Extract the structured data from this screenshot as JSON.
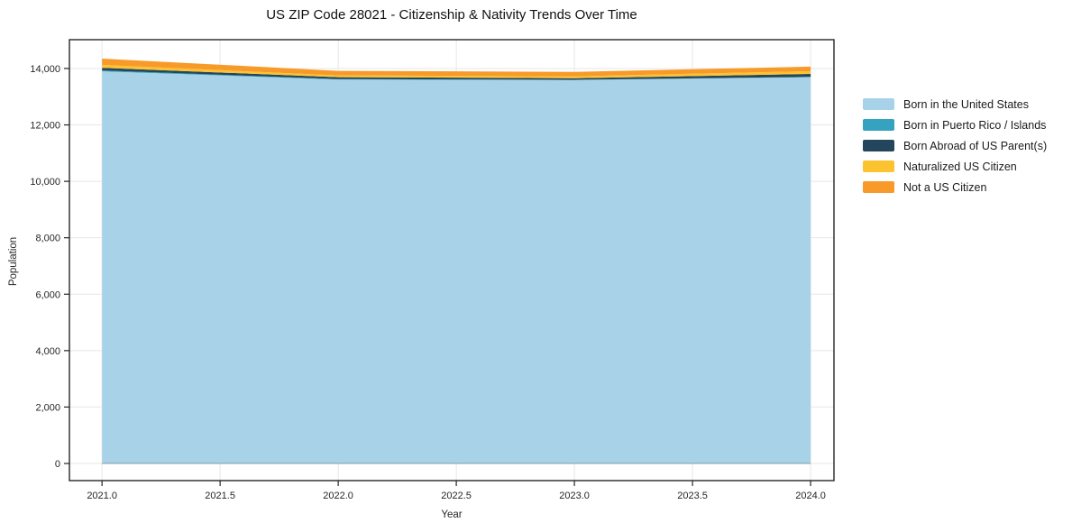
{
  "chart_data": {
    "type": "area",
    "stacked": true,
    "title": "US ZIP Code 28021 - Citizenship & Nativity Trends Over Time",
    "xlabel": "Year",
    "ylabel": "Population",
    "x": [
      2021,
      2022,
      2023,
      2024
    ],
    "series": [
      {
        "name": "Born in the United States",
        "color": "#a8d2e7",
        "values": [
          13900,
          13610,
          13590,
          13690
        ]
      },
      {
        "name": "Born in Puerto Rico / Islands",
        "color": "#35a3bf",
        "values": [
          30,
          15,
          10,
          10
        ]
      },
      {
        "name": "Born Abroad of US Parent(s)",
        "color": "#24465c",
        "values": [
          95,
          65,
          55,
          105
        ]
      },
      {
        "name": "Naturalized US Citizen",
        "color": "#fcc331",
        "values": [
          100,
          65,
          65,
          100
        ]
      },
      {
        "name": "Not a US Citizen",
        "color": "#f89a29",
        "values": [
          225,
          160,
          160,
          160
        ]
      }
    ],
    "totals": [
      14350,
      13915,
      13880,
      14065
    ],
    "xlim": [
      2020.862,
      2024.099
    ],
    "ylim": [
      -607,
      15021
    ],
    "xticks": [
      2021.0,
      2021.5,
      2022.0,
      2022.5,
      2023.0,
      2023.5,
      2024.0
    ],
    "xtick_labels": [
      "2021.0",
      "2021.5",
      "2022.0",
      "2022.5",
      "2023.0",
      "2023.5",
      "2024.0"
    ],
    "yticks": [
      0,
      2000,
      4000,
      6000,
      8000,
      10000,
      12000,
      14000
    ],
    "ytick_labels": [
      "0",
      "2,000",
      "4,000",
      "6,000",
      "8,000",
      "10,000",
      "12,000",
      "14,000"
    ],
    "grid": true,
    "legend_position": "right"
  },
  "colors": {
    "background": "#ffffff",
    "grid": "#e7e7e7",
    "spine": "#262626",
    "text": "#262626",
    "area_bottom_edge": "#44606e"
  }
}
